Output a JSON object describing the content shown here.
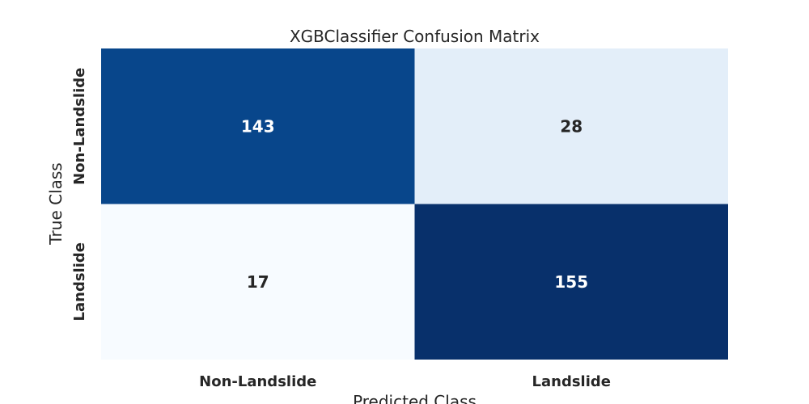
{
  "chart_data": {
    "type": "heatmap",
    "title": "XGBClassifier Confusion Matrix",
    "xlabel": "Predicted Class",
    "ylabel": "True Class",
    "x_categories": [
      "Non-Landslide",
      "Landslide"
    ],
    "y_categories": [
      "Non-Landslide",
      "Landslide"
    ],
    "values": [
      [
        143,
        28
      ],
      [
        17,
        155
      ]
    ],
    "colormap": "Blues",
    "colorbar": false,
    "cell_colors": [
      [
        "#08468b",
        "#e3eef9"
      ],
      [
        "#f7fbff",
        "#08306b"
      ]
    ],
    "text_colors": [
      [
        "#ffffff",
        "#262626"
      ],
      [
        "#262626",
        "#ffffff"
      ]
    ]
  }
}
